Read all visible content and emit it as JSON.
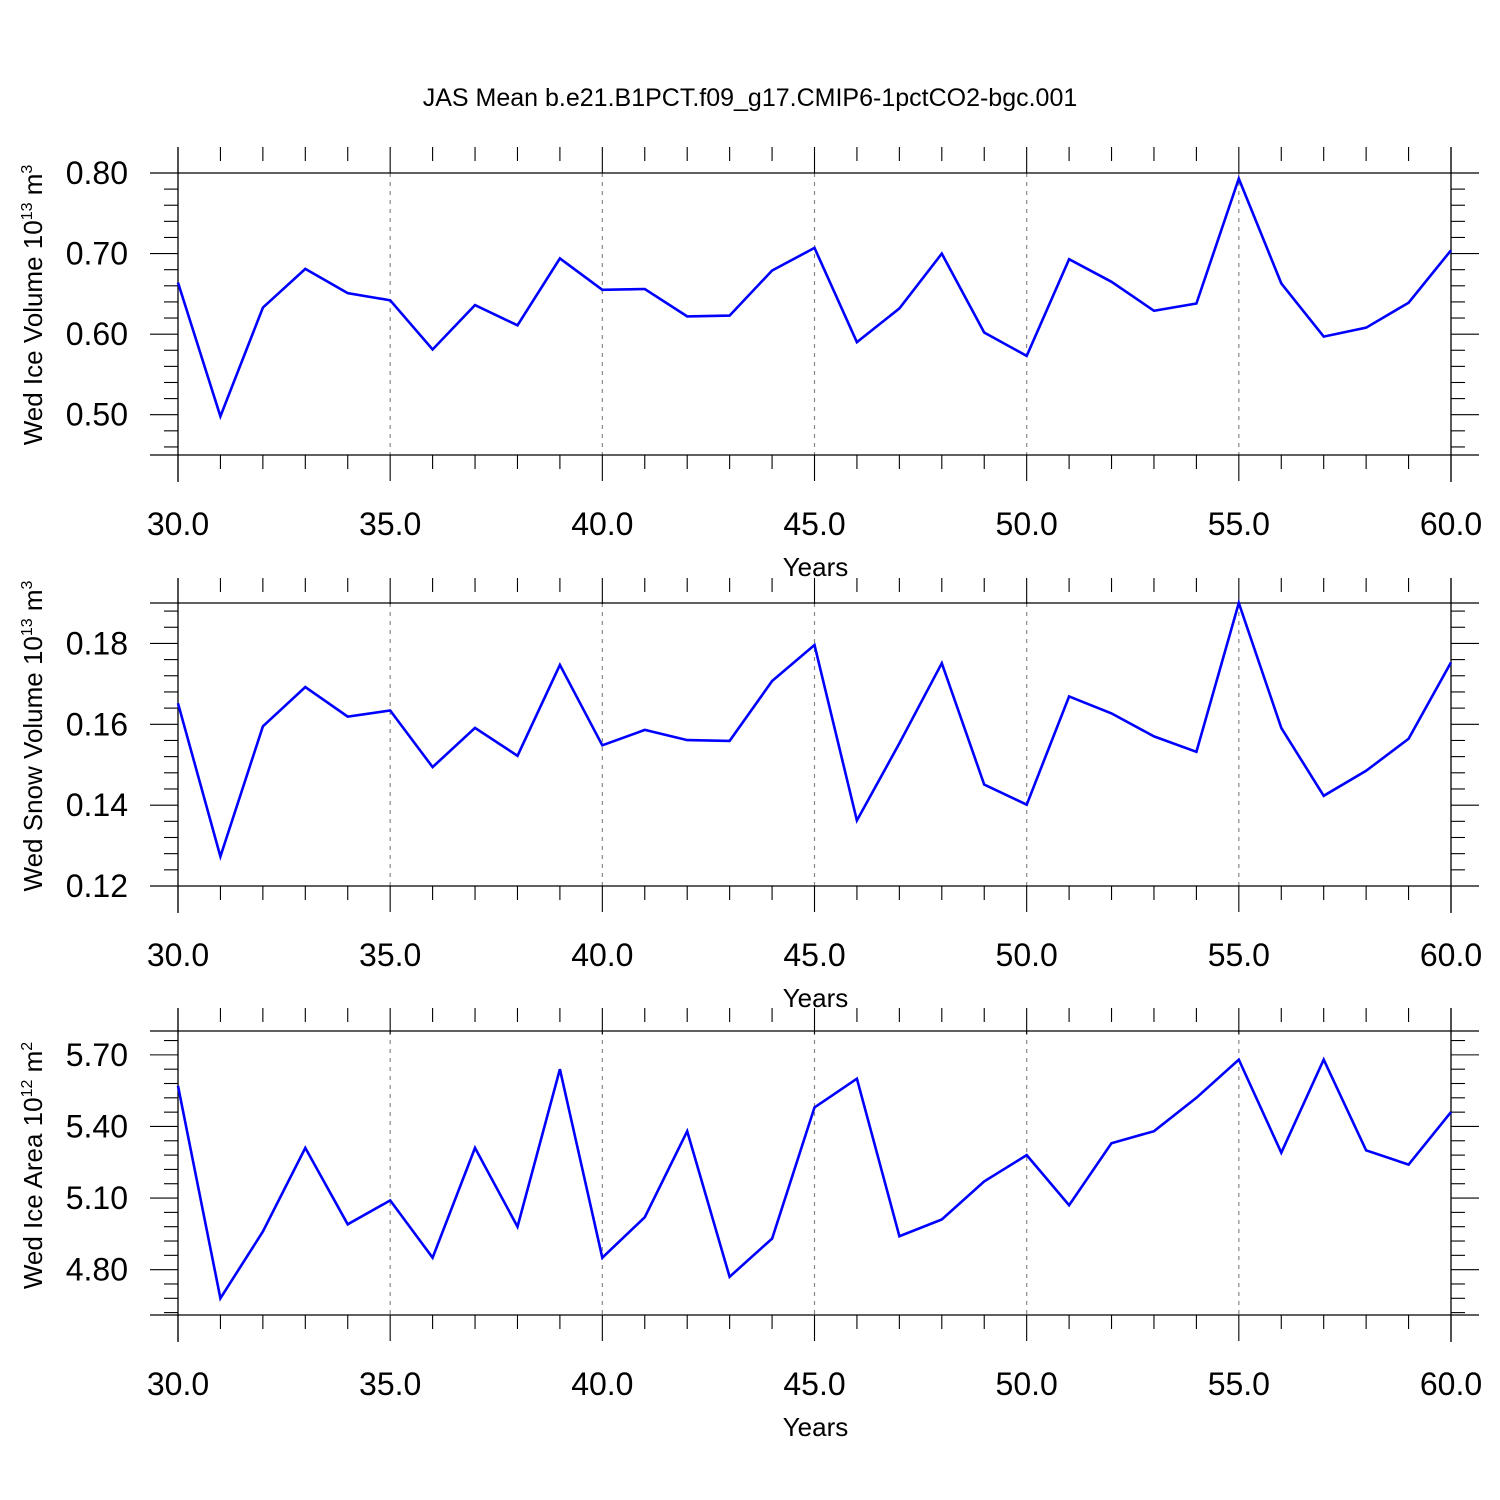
{
  "title": "JAS Mean b.e21.B1PCT.f09_g17.CMIP6-1pctCO2-bgc.001",
  "colors": {
    "line": "#0000ff",
    "frame": "#000000",
    "grid": "#888888"
  },
  "chart_data": [
    {
      "type": "line",
      "ylabel": "Wed Ice Volume 10",
      "ylabel_exp": "13",
      "ylabel_unit": " m",
      "ylabel_unit_exp": "3",
      "xlabel": "Years",
      "xlim": [
        30,
        60
      ],
      "ylim": [
        0.45,
        0.8
      ],
      "xticks": [
        "30.0",
        "35.0",
        "40.0",
        "45.0",
        "50.0",
        "55.0",
        "60.0"
      ],
      "yticks": [
        {
          "value": 0.5,
          "label": "0.50"
        },
        {
          "value": 0.6,
          "label": "0.60"
        },
        {
          "value": 0.7,
          "label": "0.70"
        },
        {
          "value": 0.8,
          "label": "0.80"
        }
      ],
      "x": [
        30,
        31,
        32,
        33,
        34,
        35,
        36,
        37,
        38,
        39,
        40,
        41,
        42,
        43,
        44,
        45,
        46,
        47,
        48,
        49,
        50,
        51,
        52,
        53,
        54,
        55,
        56,
        57,
        58,
        59,
        60
      ],
      "y": [
        0.664,
        0.498,
        0.633,
        0.681,
        0.651,
        0.642,
        0.581,
        0.636,
        0.611,
        0.694,
        0.655,
        0.656,
        0.622,
        0.623,
        0.679,
        0.707,
        0.59,
        0.632,
        0.7,
        0.602,
        0.573,
        0.693,
        0.665,
        0.629,
        0.638,
        0.793,
        0.663,
        0.597,
        0.608,
        0.639,
        0.704
      ],
      "grid_x": [
        35,
        40,
        45,
        50,
        55
      ]
    },
    {
      "type": "line",
      "ylabel": "Wed Snow Volume 10",
      "ylabel_exp": "13",
      "ylabel_unit": " m",
      "ylabel_unit_exp": "3",
      "xlabel": "Years",
      "xlim": [
        30,
        60
      ],
      "ylim": [
        0.12,
        0.19
      ],
      "xticks": [
        "30.0",
        "35.0",
        "40.0",
        "45.0",
        "50.0",
        "55.0",
        "60.0"
      ],
      "yticks": [
        {
          "value": 0.12,
          "label": "0.12"
        },
        {
          "value": 0.14,
          "label": "0.14"
        },
        {
          "value": 0.16,
          "label": "0.16"
        },
        {
          "value": 0.18,
          "label": "0.18"
        }
      ],
      "x": [
        30,
        31,
        32,
        33,
        34,
        35,
        36,
        37,
        38,
        39,
        40,
        41,
        42,
        43,
        44,
        45,
        46,
        47,
        48,
        49,
        50,
        51,
        52,
        53,
        54,
        55,
        56,
        57,
        58,
        59,
        60
      ],
      "y": [
        0.1652,
        0.1273,
        0.1595,
        0.1692,
        0.1619,
        0.1634,
        0.1494,
        0.1591,
        0.1522,
        0.1747,
        0.1548,
        0.1586,
        0.1561,
        0.1559,
        0.1707,
        0.1796,
        0.1362,
        0.1553,
        0.1751,
        0.1451,
        0.1401,
        0.1669,
        0.1627,
        0.157,
        0.1532,
        0.19,
        0.1591,
        0.1423,
        0.1485,
        0.1564,
        0.1753
      ],
      "grid_x": [
        35,
        40,
        45,
        50,
        55
      ]
    },
    {
      "type": "line",
      "ylabel": "Wed Ice Area 10",
      "ylabel_exp": "12",
      "ylabel_unit": " m",
      "ylabel_unit_exp": "2",
      "xlabel": "Years",
      "xlim": [
        30,
        60
      ],
      "ylim": [
        4.61,
        5.8
      ],
      "xticks": [
        "30.0",
        "35.0",
        "40.0",
        "45.0",
        "50.0",
        "55.0",
        "60.0"
      ],
      "yticks": [
        {
          "value": 4.8,
          "label": "4.80"
        },
        {
          "value": 5.1,
          "label": "5.10"
        },
        {
          "value": 5.4,
          "label": "5.40"
        },
        {
          "value": 5.7,
          "label": "5.70"
        }
      ],
      "x": [
        30,
        31,
        32,
        33,
        34,
        35,
        36,
        37,
        38,
        39,
        40,
        41,
        42,
        43,
        44,
        45,
        46,
        47,
        48,
        49,
        50,
        51,
        52,
        53,
        54,
        55,
        56,
        57,
        58,
        59,
        60
      ],
      "y": [
        5.57,
        4.68,
        4.96,
        5.31,
        4.99,
        5.09,
        4.85,
        5.31,
        4.98,
        5.64,
        4.85,
        5.02,
        5.38,
        4.77,
        4.93,
        5.48,
        5.6,
        4.94,
        5.01,
        5.17,
        5.28,
        5.07,
        5.33,
        5.38,
        5.52,
        5.68,
        5.29,
        5.68,
        5.3,
        5.24,
        5.46
      ],
      "grid_x": [
        35,
        40,
        45,
        50,
        55
      ]
    }
  ]
}
